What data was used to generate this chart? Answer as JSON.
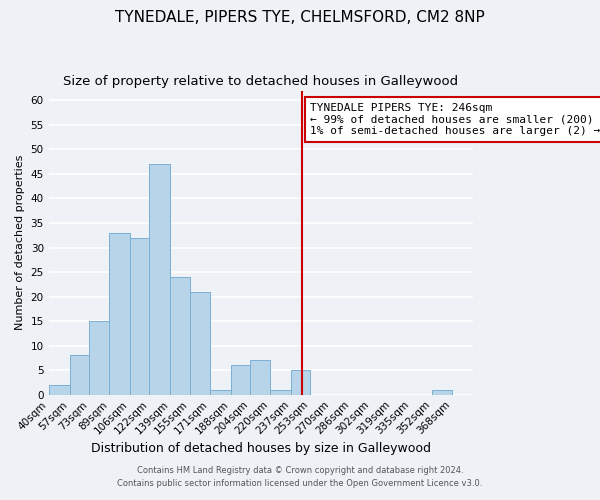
{
  "title": "TYNEDALE, PIPERS TYE, CHELMSFORD, CM2 8NP",
  "subtitle": "Size of property relative to detached houses in Galleywood",
  "xlabel": "Distribution of detached houses by size in Galleywood",
  "ylabel": "Number of detached properties",
  "footer_line1": "Contains HM Land Registry data © Crown copyright and database right 2024.",
  "footer_line2": "Contains public sector information licensed under the Open Government Licence v3.0.",
  "bin_labels": [
    "40sqm",
    "57sqm",
    "73sqm",
    "89sqm",
    "106sqm",
    "122sqm",
    "139sqm",
    "155sqm",
    "171sqm",
    "188sqm",
    "204sqm",
    "220sqm",
    "237sqm",
    "253sqm",
    "270sqm",
    "286sqm",
    "302sqm",
    "319sqm",
    "335sqm",
    "352sqm",
    "368sqm"
  ],
  "bin_edges": [
    40,
    57,
    73,
    89,
    106,
    122,
    139,
    155,
    171,
    188,
    204,
    220,
    237,
    253,
    270,
    286,
    302,
    319,
    335,
    352,
    368,
    385
  ],
  "counts": [
    2,
    8,
    15,
    33,
    32,
    47,
    24,
    21,
    1,
    6,
    7,
    1,
    5,
    0,
    0,
    0,
    0,
    0,
    0,
    1,
    0
  ],
  "bar_color": "#b8d4e8",
  "bar_edge_color": "#7aafd4",
  "property_line_x": 246,
  "property_line_color": "#cc0000",
  "annotation_title": "TYNEDALE PIPERS TYE: 246sqm",
  "annotation_line1": "← 99% of detached houses are smaller (200)",
  "annotation_line2": "1% of semi-detached houses are larger (2) →",
  "annotation_box_color": "#ffffff",
  "annotation_box_edge_color": "#cc0000",
  "ylim": [
    0,
    62
  ],
  "yticks": [
    0,
    5,
    10,
    15,
    20,
    25,
    30,
    35,
    40,
    45,
    50,
    55,
    60
  ],
  "background_color": "#eef2f7",
  "grid_color": "#ffffff",
  "title_fontsize": 11,
  "subtitle_fontsize": 9.5,
  "xlabel_fontsize": 9,
  "ylabel_fontsize": 8,
  "tick_fontsize": 7.5,
  "annotation_fontsize": 8,
  "footer_fontsize": 6
}
